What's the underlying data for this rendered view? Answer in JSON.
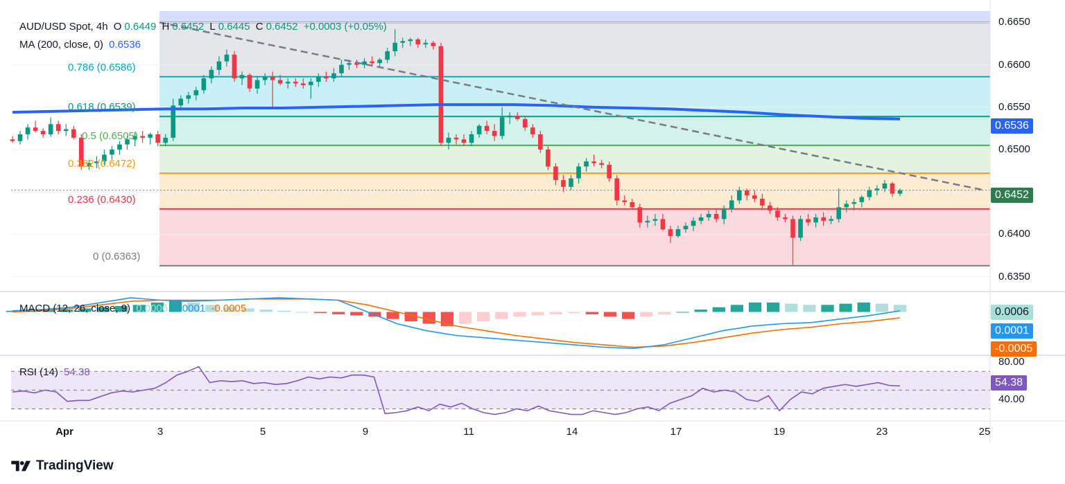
{
  "header": {
    "symbol": "AUD/USD Spot, 4h",
    "timeframe_prefix": "O",
    "open": "0.6449",
    "high_prefix": "H",
    "high": "0.6452",
    "low_prefix": "L",
    "low": "0.6445",
    "close_prefix": "C",
    "close": "0.6452",
    "change": "+0.0003 (+0.05%)"
  },
  "ma_legend": {
    "label": "MA (200, close, 0)",
    "value": "0.6536",
    "color": "#2962ff"
  },
  "macd_legend": {
    "label": "MACD (12, 26, close, 9)",
    "hist": "0.0006",
    "macd": "0.0001",
    "signal": "-0.0005"
  },
  "rsi_legend": {
    "label": "RSI (14)",
    "value": "54.38"
  },
  "price_badge": {
    "value": "0.6452",
    "color": "#2e7d4f"
  },
  "ma_badge": {
    "value": "0.6536",
    "color": "#2962ff"
  },
  "macd_badges": {
    "hist": "0.0006",
    "macd": "0.0001",
    "signal": "-0.0005"
  },
  "rsi_badge": {
    "value": "54.38"
  },
  "fib_levels": [
    {
      "label": "0.786 (0.6586)",
      "price": 0.6586,
      "color": "#00acc1"
    },
    {
      "label": "0.618 (0.6539)",
      "price": 0.6539,
      "color": "#089981"
    },
    {
      "label": "0.5 (0.6505)",
      "price": 0.6505,
      "color": "#4caf50"
    },
    {
      "label": "0.382 (0.6472)",
      "price": 0.6472,
      "color": "#ff9800"
    },
    {
      "label": "0.236 (0.6430)",
      "price": 0.643,
      "color": "#f23645"
    },
    {
      "label": "0 (0.6363)",
      "price": 0.6363,
      "color": "#787b86"
    }
  ],
  "y_ticks": [
    "0.6650",
    "0.6600",
    "0.6550",
    "0.6500",
    "0.6450",
    "0.6400",
    "0.6350"
  ],
  "rsi_ticks": [
    "80.00",
    "40.00"
  ],
  "x_ticks": [
    "Apr",
    "3",
    "5",
    "9",
    "11",
    "14",
    "17",
    "19",
    "23",
    "25"
  ],
  "brand": "TradingView",
  "colors": {
    "up": "#089981",
    "down": "#f23645",
    "ma": "#2962ff",
    "macd": "#2196f3",
    "signal": "#ff6d00",
    "rsi": "#7e57c2"
  },
  "chart_data": {
    "type": "candlestick",
    "title": "AUD/USD Spot, 4h",
    "ylim": [
      0.6335,
      0.6665
    ],
    "candles": [
      [
        0.6512,
        0.6516,
        0.6508,
        0.651
      ],
      [
        0.651,
        0.6522,
        0.6506,
        0.6518
      ],
      [
        0.6518,
        0.653,
        0.6512,
        0.6526
      ],
      [
        0.6526,
        0.6534,
        0.652,
        0.6522
      ],
      [
        0.6522,
        0.6525,
        0.6514,
        0.6518
      ],
      [
        0.6518,
        0.6538,
        0.6515,
        0.653
      ],
      [
        0.653,
        0.6534,
        0.6518,
        0.6522
      ],
      [
        0.6522,
        0.653,
        0.6516,
        0.6524
      ],
      [
        0.6524,
        0.6528,
        0.6512,
        0.6514
      ],
      [
        0.6514,
        0.6518,
        0.6476,
        0.648
      ],
      [
        0.648,
        0.6488,
        0.6476,
        0.6484
      ],
      [
        0.6484,
        0.6492,
        0.6478,
        0.6486
      ],
      [
        0.6486,
        0.65,
        0.6482,
        0.6494
      ],
      [
        0.6494,
        0.6504,
        0.6488,
        0.65
      ],
      [
        0.65,
        0.651,
        0.6494,
        0.6506
      ],
      [
        0.6506,
        0.6516,
        0.65,
        0.6512
      ],
      [
        0.6512,
        0.652,
        0.6504,
        0.6516
      ],
      [
        0.6516,
        0.6522,
        0.6508,
        0.6514
      ],
      [
        0.6514,
        0.652,
        0.6506,
        0.6518
      ],
      [
        0.6518,
        0.6522,
        0.6504,
        0.6508
      ],
      [
        0.6508,
        0.6518,
        0.6504,
        0.6514
      ],
      [
        0.6514,
        0.656,
        0.651,
        0.6552
      ],
      [
        0.6552,
        0.6564,
        0.6546,
        0.656
      ],
      [
        0.656,
        0.6568,
        0.6554,
        0.6564
      ],
      [
        0.6564,
        0.6574,
        0.6558,
        0.657
      ],
      [
        0.657,
        0.6588,
        0.6566,
        0.6584
      ],
      [
        0.6584,
        0.6598,
        0.6578,
        0.6594
      ],
      [
        0.6594,
        0.661,
        0.6588,
        0.6604
      ],
      [
        0.6604,
        0.6618,
        0.6598,
        0.6612
      ],
      [
        0.6612,
        0.6616,
        0.658,
        0.6584
      ],
      [
        0.6584,
        0.6592,
        0.6576,
        0.6588
      ],
      [
        0.6588,
        0.659,
        0.6568,
        0.6572
      ],
      [
        0.6572,
        0.6586,
        0.6566,
        0.6582
      ],
      [
        0.6582,
        0.659,
        0.6576,
        0.6586
      ],
      [
        0.6586,
        0.6592,
        0.655,
        0.6582
      ],
      [
        0.6582,
        0.6588,
        0.6576,
        0.6578
      ],
      [
        0.6578,
        0.6584,
        0.6572,
        0.658
      ],
      [
        0.658,
        0.6584,
        0.6574,
        0.6578
      ],
      [
        0.6578,
        0.6584,
        0.6572,
        0.6576
      ],
      [
        0.6576,
        0.6584,
        0.656,
        0.658
      ],
      [
        0.658,
        0.659,
        0.6574,
        0.6586
      ],
      [
        0.6586,
        0.6592,
        0.658,
        0.6584
      ],
      [
        0.6584,
        0.6596,
        0.658,
        0.659
      ],
      [
        0.659,
        0.6606,
        0.6586,
        0.66
      ],
      [
        0.66,
        0.6606,
        0.6594,
        0.6602
      ],
      [
        0.6602,
        0.6606,
        0.6596,
        0.66
      ],
      [
        0.66,
        0.6608,
        0.6596,
        0.6604
      ],
      [
        0.6604,
        0.661,
        0.6598,
        0.6602
      ],
      [
        0.6602,
        0.6608,
        0.6596,
        0.6606
      ],
      [
        0.6606,
        0.662,
        0.6602,
        0.6616
      ],
      [
        0.6616,
        0.6642,
        0.661,
        0.6626
      ],
      [
        0.6626,
        0.6632,
        0.662,
        0.6628
      ],
      [
        0.6628,
        0.6632,
        0.6622,
        0.663
      ],
      [
        0.663,
        0.6632,
        0.662,
        0.6624
      ],
      [
        0.6624,
        0.663,
        0.662,
        0.6626
      ],
      [
        0.6626,
        0.6628,
        0.6618,
        0.6622
      ],
      [
        0.6622,
        0.6626,
        0.6504,
        0.6508
      ],
      [
        0.6508,
        0.652,
        0.65,
        0.6514
      ],
      [
        0.6514,
        0.6518,
        0.6506,
        0.6512
      ],
      [
        0.6512,
        0.6518,
        0.6504,
        0.6508
      ],
      [
        0.6508,
        0.6522,
        0.6504,
        0.6518
      ],
      [
        0.6518,
        0.653,
        0.6514,
        0.6528
      ],
      [
        0.6528,
        0.6534,
        0.6518,
        0.6522
      ],
      [
        0.6522,
        0.653,
        0.651,
        0.6516
      ],
      [
        0.6516,
        0.655,
        0.6512,
        0.6538
      ],
      [
        0.6538,
        0.6544,
        0.653,
        0.654
      ],
      [
        0.654,
        0.6544,
        0.6534,
        0.6536
      ],
      [
        0.6536,
        0.654,
        0.6522,
        0.6526
      ],
      [
        0.6526,
        0.653,
        0.6514,
        0.6518
      ],
      [
        0.6518,
        0.6522,
        0.6496,
        0.65
      ],
      [
        0.65,
        0.6504,
        0.6476,
        0.648
      ],
      [
        0.648,
        0.6484,
        0.6458,
        0.6464
      ],
      [
        0.6464,
        0.647,
        0.645,
        0.6456
      ],
      [
        0.6456,
        0.647,
        0.6452,
        0.6466
      ],
      [
        0.6466,
        0.6484,
        0.646,
        0.648
      ],
      [
        0.648,
        0.649,
        0.6474,
        0.6486
      ],
      [
        0.6486,
        0.6494,
        0.648,
        0.6484
      ],
      [
        0.6484,
        0.6488,
        0.6478,
        0.6482
      ],
      [
        0.6482,
        0.6486,
        0.6462,
        0.6466
      ],
      [
        0.6466,
        0.647,
        0.6434,
        0.644
      ],
      [
        0.644,
        0.6446,
        0.6434,
        0.6438
      ],
      [
        0.6438,
        0.6442,
        0.643,
        0.6432
      ],
      [
        0.6432,
        0.6436,
        0.6408,
        0.6414
      ],
      [
        0.6414,
        0.6422,
        0.6408,
        0.6416
      ],
      [
        0.6416,
        0.6424,
        0.641,
        0.6418
      ],
      [
        0.6418,
        0.6424,
        0.6404,
        0.6406
      ],
      [
        0.6406,
        0.641,
        0.639,
        0.6398
      ],
      [
        0.6398,
        0.641,
        0.6396,
        0.6406
      ],
      [
        0.6406,
        0.6414,
        0.6402,
        0.641
      ],
      [
        0.641,
        0.642,
        0.6404,
        0.6416
      ],
      [
        0.6416,
        0.6424,
        0.6412,
        0.642
      ],
      [
        0.642,
        0.6428,
        0.6416,
        0.6424
      ],
      [
        0.6424,
        0.643,
        0.6414,
        0.6418
      ],
      [
        0.6418,
        0.6434,
        0.6412,
        0.643
      ],
      [
        0.643,
        0.6446,
        0.6426,
        0.644
      ],
      [
        0.644,
        0.6456,
        0.6436,
        0.6452
      ],
      [
        0.6452,
        0.6454,
        0.644,
        0.6446
      ],
      [
        0.6446,
        0.6452,
        0.6438,
        0.6442
      ],
      [
        0.6442,
        0.6448,
        0.643,
        0.6434
      ],
      [
        0.6434,
        0.6438,
        0.6424,
        0.6428
      ],
      [
        0.6428,
        0.6432,
        0.6416,
        0.642
      ],
      [
        0.642,
        0.6424,
        0.6414,
        0.6418
      ],
      [
        0.6418,
        0.6422,
        0.6364,
        0.6396
      ],
      [
        0.6396,
        0.6422,
        0.6392,
        0.6418
      ],
      [
        0.6418,
        0.6424,
        0.641,
        0.6414
      ],
      [
        0.6414,
        0.6424,
        0.6408,
        0.642
      ],
      [
        0.642,
        0.6426,
        0.641,
        0.6416
      ],
      [
        0.6416,
        0.6422,
        0.6412,
        0.6418
      ],
      [
        0.6418,
        0.6454,
        0.6414,
        0.6432
      ],
      [
        0.6432,
        0.644,
        0.6426,
        0.6436
      ],
      [
        0.6436,
        0.6442,
        0.6428,
        0.6438
      ],
      [
        0.6438,
        0.6446,
        0.6432,
        0.6444
      ],
      [
        0.6444,
        0.6456,
        0.644,
        0.6452
      ],
      [
        0.6452,
        0.6458,
        0.6446,
        0.6454
      ],
      [
        0.6454,
        0.6464,
        0.645,
        0.646
      ],
      [
        0.646,
        0.6462,
        0.6444,
        0.6448
      ],
      [
        0.6448,
        0.6454,
        0.6445,
        0.6452
      ]
    ],
    "ma200": [
      0.6544,
      0.6545,
      0.6546,
      0.6547,
      0.6548,
      0.6548,
      0.6549,
      0.6549,
      0.655,
      0.6551,
      0.6552,
      0.6553,
      0.6553,
      0.6553,
      0.6552,
      0.655,
      0.6549,
      0.6548,
      0.6546,
      0.6544,
      0.6541,
      0.6539,
      0.6537,
      0.6536
    ],
    "resistance_line": {
      "from": [
        0.665,
        0
      ],
      "to": [
        0.6452,
        1
      ]
    },
    "macd": {
      "hist": [
        0.0001,
        0.0001,
        0.0002,
        0.0002,
        0.0003,
        0.0004,
        0.0005,
        0.0006,
        0.0008,
        0.001,
        0.0008,
        0.0006,
        0.0004,
        0.0003,
        0.0002,
        0.0001,
        0.0,
        -0.0001,
        -0.0002,
        -0.0003,
        -0.0004,
        -0.0006,
        -0.0008,
        -0.001,
        -0.0012,
        -0.001,
        -0.0008,
        -0.0006,
        -0.0004,
        -0.0003,
        -0.0002,
        -0.0001,
        -0.0002,
        -0.0004,
        -0.0006,
        -0.0004,
        -0.0002,
        0.0,
        0.0002,
        0.0004,
        0.0006,
        0.0008,
        0.0008,
        0.0007,
        0.0006,
        0.0006,
        0.0007,
        0.0008,
        0.0007,
        0.0006
      ],
      "macd_line": [
        0.0001,
        0.0002,
        0.0004,
        0.0008,
        0.0012,
        0.001,
        0.0009,
        0.001,
        0.0011,
        0.0012,
        0.0011,
        0.001,
        0.0,
        -0.001,
        -0.0016,
        -0.002,
        -0.0022,
        -0.0024,
        -0.0026,
        -0.0028,
        -0.003,
        -0.0031,
        -0.0028,
        -0.0022,
        -0.0016,
        -0.0012,
        -0.001,
        -0.0009,
        -0.0006,
        -0.0003,
        0.0001
      ],
      "signal_line": [
        0.0,
        0.0001,
        0.0003,
        0.0006,
        0.0009,
        0.001,
        0.001,
        0.001,
        0.0011,
        0.0011,
        0.0011,
        0.001,
        0.0006,
        0.0,
        -0.0006,
        -0.0012,
        -0.0016,
        -0.002,
        -0.0023,
        -0.0026,
        -0.0028,
        -0.003,
        -0.0029,
        -0.0026,
        -0.0022,
        -0.0018,
        -0.0015,
        -0.0013,
        -0.001,
        -0.0008,
        -0.0005
      ]
    },
    "rsi": [
      48,
      49,
      47,
      50,
      48,
      38,
      39,
      39,
      43,
      47,
      49,
      48,
      50,
      52,
      58,
      66,
      70,
      75,
      58,
      60,
      59,
      60,
      57,
      58,
      56,
      57,
      60,
      64,
      62,
      64,
      63,
      66,
      66,
      64,
      25,
      26,
      28,
      32,
      28,
      35,
      32,
      36,
      30,
      26,
      24,
      26,
      30,
      28,
      33,
      28,
      26,
      24,
      24,
      28,
      26,
      24,
      26,
      30,
      32,
      28,
      36,
      40,
      44,
      52,
      48,
      50,
      48,
      40,
      38,
      44,
      28,
      40,
      48,
      46,
      52,
      54,
      56,
      54,
      56,
      58,
      55,
      54.38
    ],
    "rsi_ylim": [
      20,
      85
    ]
  }
}
